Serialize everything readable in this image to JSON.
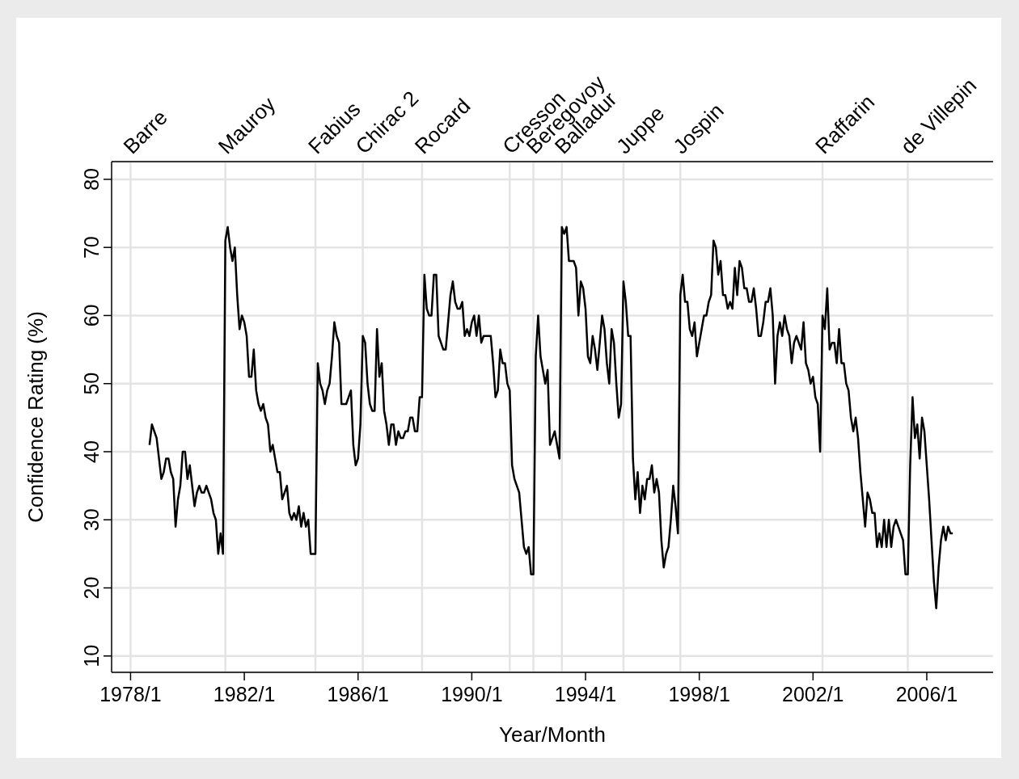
{
  "chart_data": {
    "type": "line",
    "xlabel": "Year/Month",
    "ylabel": "Confidence Rating (%)",
    "color": "#000000",
    "grid": "y",
    "xlim": [
      "1977-05",
      "2008-05"
    ],
    "xticks": [
      {
        "value": "1978-01",
        "label": "1978/1"
      },
      {
        "value": "1982-01",
        "label": "1982/1"
      },
      {
        "value": "1986-01",
        "label": "1986/1"
      },
      {
        "value": "1990-01",
        "label": "1990/1"
      },
      {
        "value": "1994-01",
        "label": "1994/1"
      },
      {
        "value": "1998-01",
        "label": "1998/1"
      },
      {
        "value": "2002-01",
        "label": "2002/1"
      },
      {
        "value": "2006-01",
        "label": "2006/1"
      }
    ],
    "ref_lines": [
      {
        "axis": "x",
        "value": "1978-01",
        "label": "Barre",
        "color": "#e4e4e4"
      },
      {
        "axis": "x",
        "value": "1981-05",
        "label": "Mauroy",
        "color": "#e4e4e4"
      },
      {
        "axis": "x",
        "value": "1984-07",
        "label": "Fabius",
        "color": "#e4e4e4"
      },
      {
        "axis": "x",
        "value": "1986-03",
        "label": "Chirac 2",
        "color": "#e4e4e4"
      },
      {
        "axis": "x",
        "value": "1988-04",
        "label": "Rocard",
        "color": "#e4e4e4"
      },
      {
        "axis": "x",
        "value": "1991-05",
        "label": "Cresson",
        "color": "#e4e4e4"
      },
      {
        "axis": "x",
        "value": "1992-03",
        "label": "Beregovoy",
        "color": "#e4e4e4"
      },
      {
        "axis": "x",
        "value": "1993-03",
        "label": "Balladur",
        "color": "#e4e4e4"
      },
      {
        "axis": "x",
        "value": "1995-05",
        "label": "Juppe",
        "color": "#e4e4e4"
      },
      {
        "axis": "x",
        "value": "1997-05",
        "label": "Jospin",
        "color": "#e4e4e4"
      },
      {
        "axis": "x",
        "value": "2002-05",
        "label": "Raffarin",
        "color": "#e4e4e4"
      },
      {
        "axis": "x",
        "value": "2005-05",
        "label": "de Villepin",
        "color": "#e4e4e4"
      }
    ],
    "ylim": [
      7.6,
      82.6
    ],
    "yticks": [
      10,
      20,
      30,
      40,
      50,
      60,
      70,
      80
    ],
    "x": [
      "1978-09",
      "1978-10",
      "1978-12",
      "1979-02",
      "1979-03",
      "1979-04",
      "1979-05",
      "1979-06",
      "1979-07",
      "1979-08",
      "1979-09",
      "1979-10",
      "1979-11",
      "1979-12",
      "1980-01",
      "1980-02",
      "1980-03",
      "1980-04",
      "1980-05",
      "1980-06",
      "1980-07",
      "1980-08",
      "1980-09",
      "1980-10",
      "1980-11",
      "1980-12",
      "1981-01",
      "1981-02",
      "1981-03",
      "1981-04",
      "1981-05",
      "1981-06",
      "1981-07",
      "1981-08",
      "1981-09",
      "1981-10",
      "1981-11",
      "1981-12",
      "1982-01",
      "1982-02",
      "1982-03",
      "1982-04",
      "1982-05",
      "1982-06",
      "1982-07",
      "1982-08",
      "1982-09",
      "1982-10",
      "1982-11",
      "1982-12",
      "1983-01",
      "1983-02",
      "1983-03",
      "1983-04",
      "1983-05",
      "1983-06",
      "1983-07",
      "1983-08",
      "1983-09",
      "1983-10",
      "1983-11",
      "1983-12",
      "1984-01",
      "1984-02",
      "1984-03",
      "1984-04",
      "1984-05",
      "1984-06",
      "1984-07",
      "1984-08",
      "1984-09",
      "1984-10",
      "1984-11",
      "1984-12",
      "1985-01",
      "1985-02",
      "1985-03",
      "1985-04",
      "1985-05",
      "1985-06",
      "1985-07",
      "1985-08",
      "1985-09",
      "1985-10",
      "1985-11",
      "1985-12",
      "1986-01",
      "1986-02",
      "1986-03",
      "1986-04",
      "1986-05",
      "1986-06",
      "1986-07",
      "1986-08",
      "1986-09",
      "1986-10",
      "1986-11",
      "1986-12",
      "1987-01",
      "1987-02",
      "1987-03",
      "1987-04",
      "1987-05",
      "1987-06",
      "1987-07",
      "1987-08",
      "1987-09",
      "1987-10",
      "1987-11",
      "1987-12",
      "1988-01",
      "1988-02",
      "1988-03",
      "1988-04",
      "1988-05",
      "1988-06",
      "1988-07",
      "1988-08",
      "1988-09",
      "1988-10",
      "1988-11",
      "1988-12",
      "1989-01",
      "1989-02",
      "1989-03",
      "1989-04",
      "1989-05",
      "1989-06",
      "1989-07",
      "1989-08",
      "1989-09",
      "1989-10",
      "1989-11",
      "1989-12",
      "1990-01",
      "1990-02",
      "1990-03",
      "1990-04",
      "1990-05",
      "1990-06",
      "1990-07",
      "1990-08",
      "1990-09",
      "1990-10",
      "1990-11",
      "1990-12",
      "1991-01",
      "1991-02",
      "1991-03",
      "1991-04",
      "1991-05",
      "1991-06",
      "1991-07",
      "1991-08",
      "1991-09",
      "1991-10",
      "1991-11",
      "1991-12",
      "1992-01",
      "1992-02",
      "1992-03",
      "1992-04",
      "1992-05",
      "1992-06",
      "1992-07",
      "1992-08",
      "1992-09",
      "1992-10",
      "1992-11",
      "1992-12",
      "1993-01",
      "1993-02",
      "1993-03",
      "1993-04",
      "1993-05",
      "1993-06",
      "1993-07",
      "1993-08",
      "1993-09",
      "1993-10",
      "1993-11",
      "1993-12",
      "1994-01",
      "1994-02",
      "1994-03",
      "1994-04",
      "1994-05",
      "1994-06",
      "1994-07",
      "1994-08",
      "1994-09",
      "1994-10",
      "1994-11",
      "1994-12",
      "1995-01",
      "1995-02",
      "1995-03",
      "1995-04",
      "1995-05",
      "1995-06",
      "1995-07",
      "1995-08",
      "1995-09",
      "1995-10",
      "1995-11",
      "1995-12",
      "1996-01",
      "1996-02",
      "1996-03",
      "1996-04",
      "1996-05",
      "1996-06",
      "1996-07",
      "1996-08",
      "1996-09",
      "1996-10",
      "1996-11",
      "1996-12",
      "1997-01",
      "1997-02",
      "1997-03",
      "1997-04",
      "1997-05",
      "1997-06",
      "1997-07",
      "1997-08",
      "1997-09",
      "1997-10",
      "1997-11",
      "1997-12",
      "1998-01",
      "1998-02",
      "1998-03",
      "1998-04",
      "1998-05",
      "1998-06",
      "1998-07",
      "1998-08",
      "1998-09",
      "1998-10",
      "1998-11",
      "1998-12",
      "1999-01",
      "1999-02",
      "1999-03",
      "1999-04",
      "1999-05",
      "1999-06",
      "1999-07",
      "1999-08",
      "1999-09",
      "1999-10",
      "1999-11",
      "1999-12",
      "2000-01",
      "2000-02",
      "2000-03",
      "2000-04",
      "2000-05",
      "2000-06",
      "2000-07",
      "2000-08",
      "2000-09",
      "2000-10",
      "2000-11",
      "2000-12",
      "2001-01",
      "2001-02",
      "2001-03",
      "2001-04",
      "2001-05",
      "2001-06",
      "2001-07",
      "2001-08",
      "2001-09",
      "2001-10",
      "2001-11",
      "2001-12",
      "2002-01",
      "2002-02",
      "2002-03",
      "2002-04",
      "2002-05",
      "2002-06",
      "2002-07",
      "2002-08",
      "2002-09",
      "2002-10",
      "2002-11",
      "2002-12",
      "2003-01",
      "2003-02",
      "2003-03",
      "2003-04",
      "2003-05",
      "2003-06",
      "2003-07",
      "2003-08",
      "2003-09",
      "2003-10",
      "2003-11",
      "2003-12",
      "2004-01",
      "2004-02",
      "2004-03",
      "2004-04",
      "2004-05",
      "2004-06",
      "2004-07",
      "2004-08",
      "2004-09",
      "2004-10",
      "2004-11",
      "2004-12",
      "2005-01",
      "2005-02",
      "2005-03",
      "2005-04",
      "2005-05",
      "2005-06",
      "2005-07",
      "2005-08",
      "2005-09",
      "2005-10",
      "2005-11",
      "2005-12",
      "2006-01",
      "2006-02",
      "2006-03",
      "2006-04",
      "2006-05",
      "2006-06",
      "2006-07",
      "2006-08",
      "2006-09",
      "2006-10",
      "2006-11",
      "2006-12"
    ],
    "values": [
      41,
      44,
      42,
      36,
      37,
      39,
      39,
      37,
      36,
      29,
      33,
      35,
      40,
      40,
      36,
      38,
      35,
      32,
      34,
      35,
      34,
      34,
      35,
      34,
      33,
      31,
      30,
      25,
      28,
      25,
      71,
      73,
      70,
      68,
      70,
      63,
      58,
      60,
      59,
      57,
      51,
      51,
      55,
      49,
      47,
      46,
      47,
      45,
      44,
      40,
      41,
      39,
      37,
      37,
      33,
      34,
      35,
      31,
      30,
      31,
      30,
      32,
      29,
      31,
      29,
      30,
      25,
      25,
      25,
      53,
      50,
      49,
      47,
      49,
      50,
      54,
      59,
      57,
      56,
      47,
      47,
      47,
      48,
      49,
      41,
      38,
      39,
      44,
      57,
      56,
      50,
      47,
      46,
      46,
      58,
      51,
      53,
      46,
      44,
      41,
      44,
      44,
      41,
      43,
      42,
      42,
      43,
      43,
      45,
      45,
      43,
      43,
      48,
      48,
      66,
      61,
      60,
      60,
      66,
      66,
      57,
      56,
      55,
      55,
      59,
      63,
      65,
      62,
      61,
      61,
      62,
      57,
      58,
      57,
      59,
      60,
      57,
      60,
      56,
      57,
      57,
      57,
      57,
      53,
      48,
      49,
      55,
      53,
      53,
      50,
      49,
      38,
      36,
      35,
      34,
      30,
      26,
      25,
      26,
      22,
      22,
      54,
      60,
      54,
      52,
      50,
      52,
      41,
      42,
      43,
      41,
      39,
      73,
      72,
      73,
      68,
      68,
      68,
      67,
      60,
      65,
      64,
      61,
      54,
      53,
      57,
      55,
      52,
      56,
      60,
      58,
      53,
      50,
      58,
      56,
      50,
      45,
      47,
      65,
      62,
      57,
      57,
      39,
      33,
      37,
      31,
      35,
      33,
      36,
      36,
      38,
      34,
      36,
      34,
      27,
      23,
      25,
      26,
      30,
      35,
      32,
      28,
      63,
      66,
      62,
      62,
      58,
      57,
      59,
      54,
      56,
      58,
      60,
      60,
      62,
      63,
      71,
      70,
      66,
      68,
      63,
      63,
      61,
      62,
      61,
      67,
      63,
      68,
      67,
      64,
      64,
      62,
      62,
      64,
      61,
      57,
      57,
      59,
      62,
      62,
      64,
      60,
      50,
      57,
      59,
      57,
      60,
      58,
      57,
      53,
      56,
      57,
      56,
      55,
      59,
      53,
      52,
      50,
      51,
      48,
      47,
      40,
      60,
      58,
      64,
      55,
      56,
      56,
      53,
      58,
      53,
      53,
      50,
      49,
      45,
      43,
      45,
      42,
      37,
      33,
      29,
      34,
      33,
      31,
      31,
      26,
      28,
      26,
      30,
      26,
      30,
      26,
      29,
      30,
      29,
      28,
      27,
      22,
      22,
      38,
      48,
      42,
      44,
      39,
      45,
      43,
      38,
      33,
      27,
      21,
      17,
      23,
      27,
      29,
      27,
      29,
      28,
      28
    ]
  }
}
